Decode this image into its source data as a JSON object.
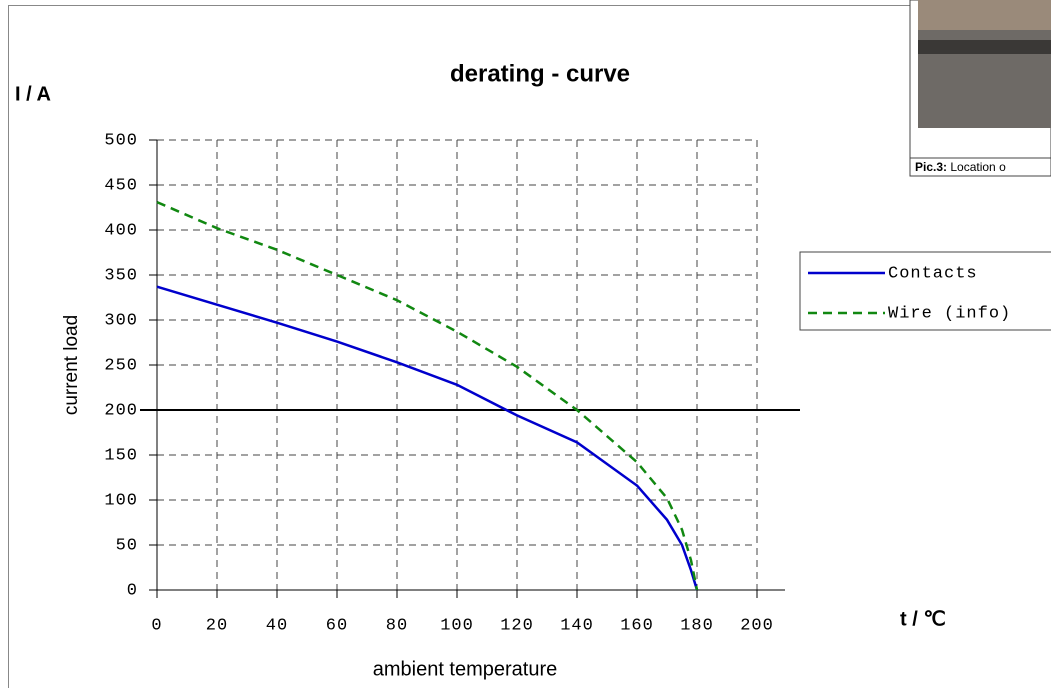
{
  "chart_data": {
    "type": "line",
    "title": "derating - curve",
    "y_unit_label": "I / A",
    "ylabel": "current load",
    "xlabel": "ambient temperature",
    "x_unit_label": "t / ℃",
    "x": [
      0,
      20,
      40,
      60,
      80,
      100,
      120,
      140,
      160,
      170,
      175,
      178,
      180
    ],
    "series": [
      {
        "name": "Contacts",
        "color": "#0000cc",
        "dash": false,
        "values": [
          337,
          317,
          297,
          276,
          253,
          228,
          194,
          164,
          116,
          78,
          50,
          22,
          0
        ]
      },
      {
        "name": "Wire (info)",
        "color": "#118811",
        "dash": true,
        "values": [
          431,
          402,
          378,
          350,
          322,
          287,
          248,
          200,
          142,
          102,
          67,
          33,
          0
        ]
      }
    ],
    "reference_line": {
      "y": 200,
      "color": "#000000"
    },
    "xlim": [
      0,
      200
    ],
    "xticks": [
      0,
      20,
      40,
      60,
      80,
      100,
      120,
      140,
      160,
      180,
      200
    ],
    "ylim": [
      0,
      500
    ],
    "yticks": [
      0,
      50,
      100,
      150,
      200,
      250,
      300,
      350,
      400,
      450,
      500
    ],
    "grid": true,
    "legend": "right"
  },
  "caption": {
    "label": "Pic.3:",
    "text": "Location o"
  }
}
